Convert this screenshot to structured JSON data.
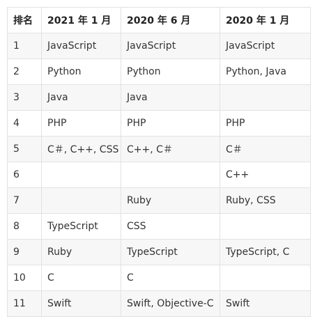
{
  "table": {
    "headers": [
      "排名",
      "2021 年 1 月",
      "2020 年 6 月",
      "2020 年 1 月"
    ],
    "rows": [
      [
        "1",
        "JavaScript",
        "JavaScript",
        "JavaScript"
      ],
      [
        "2",
        "Python",
        "Python",
        "Python, Java"
      ],
      [
        "3",
        "Java",
        "Java",
        ""
      ],
      [
        "4",
        "PHP",
        "PHP",
        "PHP"
      ],
      [
        "5",
        "C＃, C++, CSS",
        "C++, C＃",
        "C＃"
      ],
      [
        "6",
        "",
        "",
        "C++"
      ],
      [
        "7",
        "",
        "Ruby",
        "Ruby, CSS"
      ],
      [
        "8",
        "TypeScript",
        "CSS",
        ""
      ],
      [
        "9",
        "Ruby",
        "TypeScript",
        "TypeScript, C"
      ],
      [
        "10",
        "C",
        "C",
        ""
      ],
      [
        "11",
        "Swift",
        "Swift, Objective-C",
        "Swift"
      ]
    ]
  }
}
